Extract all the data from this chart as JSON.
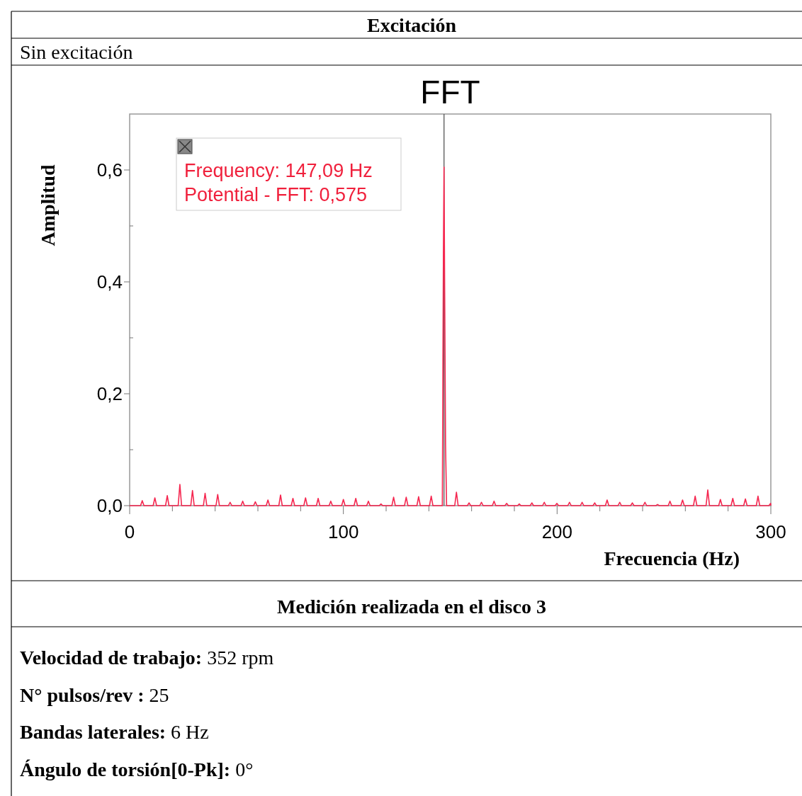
{
  "chart_data": {
    "type": "line",
    "title": "FFT",
    "xlabel": "Frecuencia (Hz)",
    "ylabel": "Amplitud",
    "annotations": [
      "Excitación",
      "Sin excitación",
      "Frequency: 147,09 Hz\nPotential - FFT: 0,575",
      "Medición realizada en el disco 3",
      "Velocidad de trabajo: 352 rpm",
      "N° pulsos/rev : 25",
      "Bandas laterales: 6 Hz",
      "Ángulo de torsión[0-Pk]: 0°"
    ],
    "ref_lines": [
      {
        "axis": "x",
        "value": 147.09,
        "color": "#555555"
      }
    ],
    "xlim": [
      0,
      300
    ],
    "ylim": [
      0,
      0.7
    ],
    "xticks": [
      0,
      {
        "value": 20,
        "label": null
      },
      {
        "value": 40,
        "label": null
      },
      {
        "value": 60,
        "label": null
      },
      {
        "value": 80,
        "label": null
      },
      100,
      {
        "value": 120,
        "label": null
      },
      {
        "value": 140,
        "label": null
      },
      {
        "value": 160,
        "label": null
      },
      {
        "value": 180,
        "label": null
      },
      200,
      {
        "value": 220,
        "label": null
      },
      {
        "value": 240,
        "label": null
      },
      {
        "value": 260,
        "label": null
      },
      {
        "value": 280,
        "label": null
      },
      300
    ],
    "yticks": [
      {
        "value": 0,
        "label": "0,0"
      },
      {
        "value": 0.1,
        "label": null
      },
      {
        "value": 0.2,
        "label": "0,2"
      },
      {
        "value": 0.3,
        "label": null
      },
      {
        "value": 0.4,
        "label": "0,4"
      },
      {
        "value": 0.5,
        "label": null
      },
      {
        "value": 0.6,
        "label": "0,6"
      }
    ],
    "grid": false,
    "series": [
      {
        "color": "#f5264f",
        "x": [
          0,
          5.1,
          5.9,
          6.7,
          11,
          11.8,
          12.6,
          16.8,
          17.6,
          18.4,
          22.7,
          23.5,
          24.3,
          28.6,
          29.4,
          30.2,
          34.5,
          35.3,
          36.1,
          40.4,
          41.2,
          42,
          46.2,
          47,
          47.8,
          52.1,
          52.9,
          53.7,
          58,
          58.8,
          59.6,
          63.9,
          64.7,
          65.5,
          69.8,
          70.6,
          71.4,
          75.6,
          76.4,
          77.2,
          81.5,
          82.3,
          83.1,
          87.4,
          88.2,
          89,
          93.3,
          94.1,
          94.9,
          99.2,
          100,
          100.8,
          105,
          105.8,
          106.6,
          110.9,
          111.7,
          112.5,
          116.8,
          117.6,
          118.4,
          122.7,
          123.5,
          124.3,
          128.6,
          129.4,
          130.2,
          134.4,
          135.2,
          136,
          140.3,
          141.1,
          141.9,
          146.3,
          146.8,
          147.09,
          147.4,
          147.8,
          148.3,
          152.1,
          152.9,
          153.7,
          158,
          158.8,
          159.6,
          163.8,
          164.6,
          165.4,
          169.7,
          170.5,
          171.3,
          175.6,
          176.4,
          177.2,
          181.5,
          182.3,
          183.1,
          187.4,
          188.2,
          189,
          193.2,
          194,
          194.8,
          199.1,
          199.9,
          200.7,
          205,
          205.8,
          206.6,
          210.9,
          211.7,
          212.5,
          216.8,
          217.6,
          218.4,
          222.6,
          223.4,
          224.2,
          228.5,
          229.3,
          230.1,
          234.4,
          235.2,
          236,
          240.3,
          241.1,
          241.9,
          246.2,
          247,
          247.8,
          252,
          252.8,
          253.6,
          257.9,
          258.7,
          259.5,
          263.8,
          264.6,
          265.4,
          269.7,
          270.5,
          271.3,
          275.6,
          276.4,
          277.2,
          281.4,
          282.2,
          283,
          287.3,
          288.1,
          288.9,
          293.2,
          294,
          294.8,
          299.1,
          299.9,
          300
        ],
        "values": [
          0,
          0,
          0.009,
          0,
          0,
          0.014,
          0,
          0,
          0.018,
          0,
          0,
          0.038,
          0,
          0,
          0.027,
          0,
          0,
          0.022,
          0,
          0,
          0.02,
          0,
          0,
          0.006,
          0,
          0,
          0.008,
          0,
          0,
          0.007,
          0,
          0,
          0.01,
          0,
          0,
          0.019,
          0,
          0,
          0.013,
          0,
          0,
          0.014,
          0,
          0,
          0.013,
          0,
          0,
          0.008,
          0,
          0,
          0.011,
          0,
          0,
          0.013,
          0,
          0,
          0.008,
          0,
          0,
          0.003,
          0,
          0,
          0.015,
          0,
          0,
          0.015,
          0,
          0,
          0.016,
          0,
          0,
          0.017,
          0,
          0,
          0.45,
          0.605,
          0.38,
          0.11,
          0,
          0,
          0.024,
          0,
          0,
          0.005,
          0,
          0,
          0.006,
          0,
          0,
          0.008,
          0,
          0,
          0.004,
          0,
          0,
          0.003,
          0,
          0,
          0.005,
          0,
          0,
          0.006,
          0,
          0,
          0.004,
          0,
          0,
          0.006,
          0,
          0,
          0.006,
          0,
          0,
          0.005,
          0,
          0,
          0.01,
          0,
          0,
          0.006,
          0,
          0,
          0.005,
          0,
          0,
          0.006,
          0,
          0,
          0.002,
          0,
          0,
          0.008,
          0,
          0,
          0.01,
          0,
          0,
          0.017,
          0,
          0,
          0.028,
          0,
          0,
          0.011,
          0,
          0,
          0.013,
          0,
          0,
          0.012,
          0,
          0,
          0.017,
          0,
          0,
          0.004,
          0
        ]
      }
    ]
  }
}
